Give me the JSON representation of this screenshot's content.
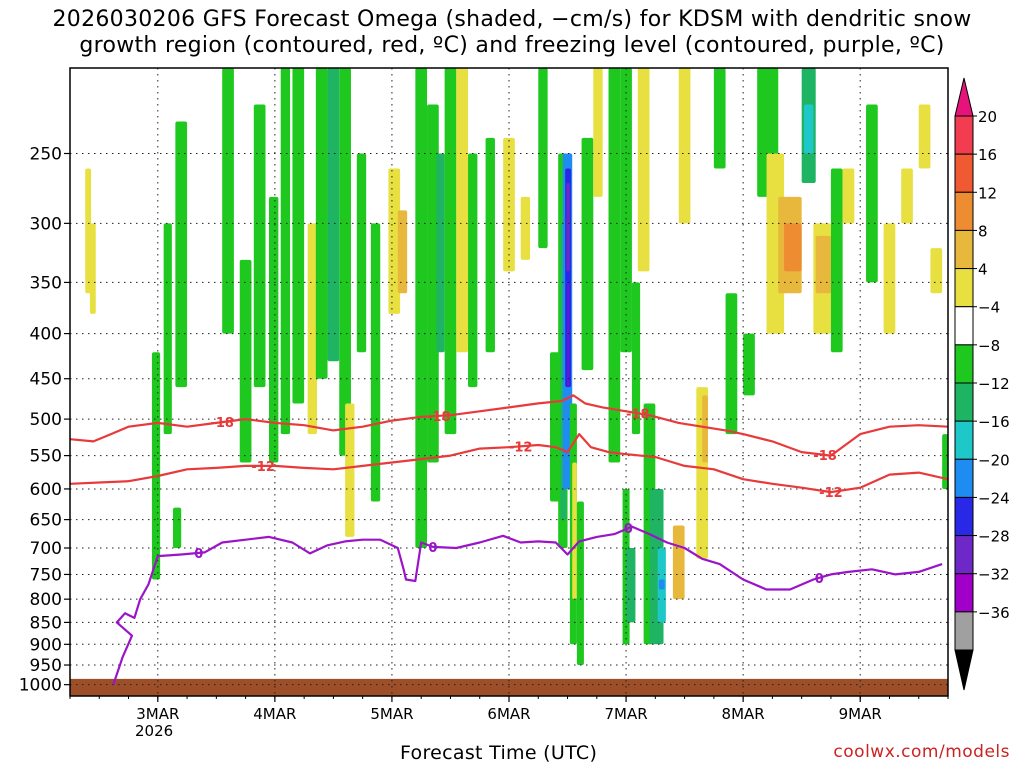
{
  "chart_data": {
    "type": "heatmap",
    "title": "2026030206 GFS Forecast Omega (shaded, −cm/s) for KDSM with dendritic snow",
    "title_line2": "growth region (contoured, red, ºC) and freezing level (contoured, purple, ºC)",
    "xlabel": "Forecast Time (UTC)",
    "ylabel": "",
    "x_range_days": [
      2.25,
      9.75
    ],
    "x_ticks": [
      {
        "label": "3MAR",
        "day": 3.0
      },
      {
        "label": "4MAR",
        "day": 4.0
      },
      {
        "label": "5MAR",
        "day": 5.0
      },
      {
        "label": "6MAR",
        "day": 6.0
      },
      {
        "label": "7MAR",
        "day": 7.0
      },
      {
        "label": "8MAR",
        "day": 8.0
      },
      {
        "label": "9MAR",
        "day": 9.0
      }
    ],
    "year_label": "2026",
    "y_axis_hpa": [
      200,
      1030
    ],
    "y_ticks": [
      "250",
      "300",
      "350",
      "400",
      "450",
      "500",
      "550",
      "600",
      "650",
      "700",
      "750",
      "800",
      "850",
      "900",
      "950",
      "1000"
    ],
    "colorbar": {
      "labels": [
        "20",
        "16",
        "12",
        "8",
        "4",
        "−4",
        "−8",
        "−12",
        "−16",
        "−20",
        "−24",
        "−28",
        "−32",
        "−36"
      ],
      "colors": [
        "#f23c50",
        "#f05a32",
        "#ee8c32",
        "#e8b83c",
        "#e8e040",
        "#ffffff",
        "#1ec81e",
        "#1eb464",
        "#1ec8c8",
        "#1e8cf0",
        "#2828e6",
        "#6e28c8",
        "#a000c8",
        "#a0a0a0"
      ],
      "top_arrow_color": "#e6147a",
      "bottom_arrow_color": "#000000"
    },
    "series": [
      {
        "name": "dendritic growth region -18°C",
        "label": "-18",
        "color": "#e83a3a",
        "x": [
          2.25,
          2.45,
          2.6,
          2.75,
          3.0,
          3.25,
          3.5,
          3.75,
          4.0,
          4.25,
          4.5,
          4.75,
          5.0,
          5.25,
          5.5,
          5.75,
          6.0,
          6.25,
          6.45,
          6.55,
          6.65,
          6.8,
          7.0,
          7.2,
          7.45,
          7.65,
          7.85,
          8.0,
          8.25,
          8.5,
          8.75,
          9.0,
          9.25,
          9.5,
          9.75
        ],
        "pressure": [
          527,
          530,
          520,
          510,
          505,
          510,
          505,
          500,
          505,
          508,
          515,
          510,
          502,
          497,
          495,
          490,
          485,
          480,
          477,
          470,
          480,
          485,
          490,
          495,
          505,
          510,
          515,
          520,
          530,
          545,
          550,
          520,
          510,
          508,
          510
        ]
      },
      {
        "name": "dendritic growth region -12°C",
        "label": "-12",
        "color": "#e83a3a",
        "x": [
          2.25,
          2.5,
          2.75,
          3.0,
          3.25,
          3.5,
          3.75,
          4.0,
          4.25,
          4.5,
          4.75,
          5.0,
          5.25,
          5.5,
          5.75,
          6.0,
          6.25,
          6.4,
          6.5,
          6.6,
          6.7,
          6.85,
          7.0,
          7.25,
          7.5,
          7.75,
          8.0,
          8.25,
          8.5,
          8.75,
          9.0,
          9.25,
          9.5,
          9.75
        ],
        "pressure": [
          592,
          590,
          588,
          580,
          570,
          568,
          565,
          565,
          568,
          570,
          565,
          560,
          555,
          550,
          540,
          538,
          535,
          538,
          545,
          520,
          538,
          545,
          548,
          552,
          565,
          570,
          585,
          592,
          598,
          605,
          598,
          578,
          575,
          585
        ]
      },
      {
        "name": "freezing level 0°C",
        "label": "0",
        "color": "#9b14c8",
        "x": [
          2.62,
          2.7,
          2.78,
          2.65,
          2.72,
          2.8,
          2.85,
          2.92,
          3.0,
          3.2,
          3.4,
          3.55,
          3.75,
          3.95,
          4.15,
          4.3,
          4.45,
          4.6,
          4.75,
          4.9,
          5.05,
          5.1,
          5.12,
          5.2,
          5.25,
          5.35,
          5.55,
          5.75,
          5.95,
          6.1,
          6.25,
          6.4,
          6.5,
          6.6,
          6.75,
          6.9,
          7.05,
          7.2,
          7.35,
          7.5,
          7.65,
          7.8,
          8.0,
          8.2,
          8.4,
          8.6,
          8.75,
          8.9,
          9.1,
          9.3,
          9.5,
          9.7
        ],
        "pressure": [
          1000,
          930,
          880,
          850,
          830,
          840,
          800,
          770,
          715,
          712,
          708,
          690,
          685,
          680,
          690,
          710,
          695,
          688,
          685,
          685,
          700,
          740,
          760,
          763,
          690,
          698,
          700,
          690,
          678,
          690,
          688,
          690,
          712,
          688,
          680,
          675,
          662,
          675,
          690,
          700,
          720,
          730,
          760,
          780,
          780,
          760,
          750,
          745,
          740,
          750,
          745,
          730
        ]
      }
    ],
    "omega_cells": [
      {
        "t0": 2.38,
        "t1": 2.43,
        "p0": 260,
        "p1": 360,
        "level": 4
      },
      {
        "t0": 2.42,
        "t1": 2.47,
        "p0": 300,
        "p1": 380,
        "level": 4
      },
      {
        "t0": 2.95,
        "t1": 3.02,
        "p0": 420,
        "p1": 760,
        "level": -4
      },
      {
        "t0": 3.05,
        "t1": 3.12,
        "p0": 300,
        "p1": 520,
        "level": -4
      },
      {
        "t0": 3.15,
        "t1": 3.25,
        "p0": 230,
        "p1": 460,
        "level": -4
      },
      {
        "t0": 3.13,
        "t1": 3.2,
        "p0": 630,
        "p1": 700,
        "level": -4
      },
      {
        "t0": 3.55,
        "t1": 3.65,
        "p0": 200,
        "p1": 400,
        "level": -4
      },
      {
        "t0": 3.7,
        "t1": 3.8,
        "p0": 330,
        "p1": 560,
        "level": -4
      },
      {
        "t0": 3.82,
        "t1": 3.92,
        "p0": 220,
        "p1": 460,
        "level": -8
      },
      {
        "t0": 3.95,
        "t1": 4.03,
        "p0": 280,
        "p1": 560,
        "level": -4
      },
      {
        "t0": 4.05,
        "t1": 4.13,
        "p0": 200,
        "p1": 520,
        "level": -4
      },
      {
        "t0": 4.15,
        "t1": 4.25,
        "p0": 200,
        "p1": 480,
        "level": -8
      },
      {
        "t0": 4.28,
        "t1": 4.36,
        "p0": 300,
        "p1": 520,
        "level": 4
      },
      {
        "t0": 4.35,
        "t1": 4.45,
        "p0": 200,
        "p1": 450,
        "level": -8
      },
      {
        "t0": 4.45,
        "t1": 4.55,
        "p0": 200,
        "p1": 430,
        "level": -12
      },
      {
        "t0": 4.55,
        "t1": 4.65,
        "p0": 200,
        "p1": 550,
        "level": -4
      },
      {
        "t0": 4.6,
        "t1": 4.68,
        "p0": 480,
        "p1": 680,
        "level": 4
      },
      {
        "t0": 4.7,
        "t1": 4.78,
        "p0": 250,
        "p1": 420,
        "level": -4
      },
      {
        "t0": 4.82,
        "t1": 4.9,
        "p0": 300,
        "p1": 620,
        "level": -4
      },
      {
        "t0": 4.97,
        "t1": 5.07,
        "p0": 260,
        "p1": 380,
        "level": 4
      },
      {
        "t0": 5.05,
        "t1": 5.13,
        "p0": 290,
        "p1": 360,
        "level": 8
      },
      {
        "t0": 5.2,
        "t1": 5.3,
        "p0": 200,
        "p1": 700,
        "level": -4
      },
      {
        "t0": 5.3,
        "t1": 5.4,
        "p0": 220,
        "p1": 560,
        "level": -8
      },
      {
        "t0": 5.38,
        "t1": 5.45,
        "p0": 250,
        "p1": 420,
        "level": -12
      },
      {
        "t0": 5.45,
        "t1": 5.55,
        "p0": 200,
        "p1": 520,
        "level": -4
      },
      {
        "t0": 5.55,
        "t1": 5.65,
        "p0": 200,
        "p1": 420,
        "level": 4
      },
      {
        "t0": 5.65,
        "t1": 5.73,
        "p0": 250,
        "p1": 460,
        "level": -8
      },
      {
        "t0": 5.8,
        "t1": 5.88,
        "p0": 240,
        "p1": 420,
        "level": -4
      },
      {
        "t0": 5.95,
        "t1": 6.05,
        "p0": 240,
        "p1": 340,
        "level": 4
      },
      {
        "t0": 6.1,
        "t1": 6.18,
        "p0": 280,
        "p1": 330,
        "level": 4
      },
      {
        "t0": 6.25,
        "t1": 6.33,
        "p0": 200,
        "p1": 320,
        "level": -4
      },
      {
        "t0": 6.35,
        "t1": 6.44,
        "p0": 420,
        "p1": 620,
        "level": -4
      },
      {
        "t0": 6.42,
        "t1": 6.5,
        "p0": 250,
        "p1": 700,
        "level": -8
      },
      {
        "t0": 6.44,
        "t1": 6.49,
        "p0": 300,
        "p1": 650,
        "level": -12
      },
      {
        "t0": 6.46,
        "t1": 6.54,
        "p0": 250,
        "p1": 600,
        "level": -20
      },
      {
        "t0": 6.48,
        "t1": 6.53,
        "p0": 260,
        "p1": 460,
        "level": -24
      },
      {
        "t0": 6.49,
        "t1": 6.52,
        "p0": 270,
        "p1": 340,
        "level": -28
      },
      {
        "t0": 6.5,
        "t1": 6.51,
        "p0": 350,
        "p1": 460,
        "level": -32
      },
      {
        "t0": 6.52,
        "t1": 6.58,
        "p0": 480,
        "p1": 900,
        "level": -8
      },
      {
        "t0": 6.54,
        "t1": 6.58,
        "p0": 560,
        "p1": 800,
        "level": 4
      },
      {
        "t0": 6.58,
        "t1": 6.64,
        "p0": 620,
        "p1": 950,
        "level": -4
      },
      {
        "t0": 6.62,
        "t1": 6.72,
        "p0": 240,
        "p1": 440,
        "level": -4
      },
      {
        "t0": 6.72,
        "t1": 6.8,
        "p0": 200,
        "p1": 280,
        "level": 4
      },
      {
        "t0": 6.85,
        "t1": 6.95,
        "p0": 200,
        "p1": 560,
        "level": -4
      },
      {
        "t0": 6.95,
        "t1": 7.05,
        "p0": 200,
        "p1": 420,
        "level": -8
      },
      {
        "t0": 6.97,
        "t1": 7.03,
        "p0": 600,
        "p1": 900,
        "level": -8
      },
      {
        "t0": 7.0,
        "t1": 7.08,
        "p0": 700,
        "p1": 850,
        "level": -12
      },
      {
        "t0": 7.05,
        "t1": 7.12,
        "p0": 350,
        "p1": 520,
        "level": -8
      },
      {
        "t0": 7.1,
        "t1": 7.2,
        "p0": 200,
        "p1": 340,
        "level": 4
      },
      {
        "t0": 7.15,
        "t1": 7.25,
        "p0": 480,
        "p1": 900,
        "level": -8
      },
      {
        "t0": 7.2,
        "t1": 7.32,
        "p0": 600,
        "p1": 900,
        "level": -12
      },
      {
        "t0": 7.27,
        "t1": 7.34,
        "p0": 700,
        "p1": 850,
        "level": -16
      },
      {
        "t0": 7.28,
        "t1": 7.33,
        "p0": 760,
        "p1": 780,
        "level": -20
      },
      {
        "t0": 7.4,
        "t1": 7.5,
        "p0": 660,
        "p1": 800,
        "level": 8
      },
      {
        "t0": 7.45,
        "t1": 7.55,
        "p0": 200,
        "p1": 300,
        "level": 4
      },
      {
        "t0": 7.6,
        "t1": 7.7,
        "p0": 460,
        "p1": 720,
        "level": 4
      },
      {
        "t0": 7.65,
        "t1": 7.7,
        "p0": 470,
        "p1": 560,
        "level": 8
      },
      {
        "t0": 7.75,
        "t1": 7.85,
        "p0": 200,
        "p1": 260,
        "level": -4
      },
      {
        "t0": 7.85,
        "t1": 7.95,
        "p0": 360,
        "p1": 520,
        "level": -4
      },
      {
        "t0": 8.0,
        "t1": 8.1,
        "p0": 400,
        "p1": 470,
        "level": -4
      },
      {
        "t0": 8.12,
        "t1": 8.3,
        "p0": 200,
        "p1": 280,
        "level": -8
      },
      {
        "t0": 8.2,
        "t1": 8.35,
        "p0": 250,
        "p1": 400,
        "level": 4
      },
      {
        "t0": 8.3,
        "t1": 8.5,
        "p0": 280,
        "p1": 360,
        "level": 8
      },
      {
        "t0": 8.35,
        "t1": 8.5,
        "p0": 300,
        "p1": 340,
        "level": 12
      },
      {
        "t0": 8.5,
        "t1": 8.62,
        "p0": 200,
        "p1": 270,
        "level": -12
      },
      {
        "t0": 8.52,
        "t1": 8.6,
        "p0": 220,
        "p1": 250,
        "level": -16
      },
      {
        "t0": 8.6,
        "t1": 8.75,
        "p0": 300,
        "p1": 400,
        "level": 4
      },
      {
        "t0": 8.62,
        "t1": 8.75,
        "p0": 310,
        "p1": 360,
        "level": 8
      },
      {
        "t0": 8.75,
        "t1": 8.85,
        "p0": 260,
        "p1": 420,
        "level": -4
      },
      {
        "t0": 8.85,
        "t1": 8.95,
        "p0": 260,
        "p1": 300,
        "level": 4
      },
      {
        "t0": 9.05,
        "t1": 9.15,
        "p0": 220,
        "p1": 350,
        "level": -4
      },
      {
        "t0": 9.2,
        "t1": 9.3,
        "p0": 300,
        "p1": 400,
        "level": 4
      },
      {
        "t0": 9.35,
        "t1": 9.45,
        "p0": 260,
        "p1": 300,
        "level": 4
      },
      {
        "t0": 9.5,
        "t1": 9.6,
        "p0": 220,
        "p1": 260,
        "level": 4
      },
      {
        "t0": 9.6,
        "t1": 9.7,
        "p0": 320,
        "p1": 360,
        "level": 4
      },
      {
        "t0": 9.7,
        "t1": 9.75,
        "p0": 520,
        "p1": 600,
        "level": -4
      }
    ],
    "terrain": {
      "label": "surface",
      "color": "#9c4f28",
      "pressure": 985
    }
  },
  "footer": {
    "xlabel": "Forecast Time (UTC)",
    "credit": "coolwx.com/models"
  }
}
